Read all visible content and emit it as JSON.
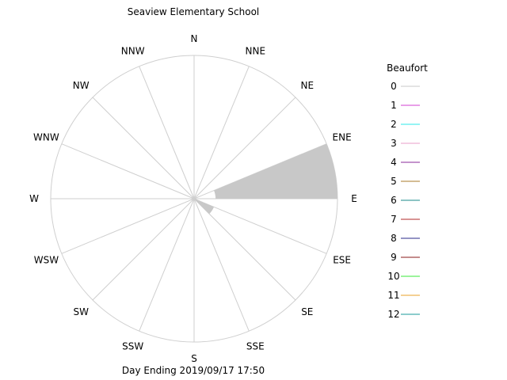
{
  "chart_data": {
    "type": "wind-rose",
    "title": "Seaview Elementary School",
    "footer": "Day Ending 2019/09/17 17:50",
    "directions": [
      "N",
      "NNE",
      "NE",
      "ENE",
      "E",
      "ESE",
      "SE",
      "SSE",
      "S",
      "SSW",
      "SW",
      "WSW",
      "W",
      "WNW",
      "NW",
      "NNW"
    ],
    "grid": true,
    "petal_color": "#c8c8c8",
    "petals": [
      {
        "direction": "ENE",
        "from_deg": 67.5,
        "to_deg": 90,
        "segments": [
          {
            "from": 0.15,
            "to": 1.0
          }
        ]
      },
      {
        "direction": "ESE",
        "from_deg": 112.5,
        "to_deg": 135,
        "segments": [
          {
            "from": 0.0,
            "to": 0.15
          }
        ]
      }
    ],
    "legend": {
      "title": "Beaufort",
      "placement": "right",
      "items": [
        {
          "label": "0",
          "color": "#c8c8c8"
        },
        {
          "label": "1",
          "color": "#d23fd2"
        },
        {
          "label": "2",
          "color": "#2ee8e8"
        },
        {
          "label": "3",
          "color": "#e89cc8"
        },
        {
          "label": "4",
          "color": "#8a2a9a"
        },
        {
          "label": "5",
          "color": "#a8782a"
        },
        {
          "label": "6",
          "color": "#1a8a8a"
        },
        {
          "label": "7",
          "color": "#b02a2a"
        },
        {
          "label": "8",
          "color": "#2a2a8a"
        },
        {
          "label": "9",
          "color": "#8a1a1a"
        },
        {
          "label": "10",
          "color": "#3ae83a"
        },
        {
          "label": "11",
          "color": "#e8a02a"
        },
        {
          "label": "12",
          "color": "#1a9a9a"
        }
      ]
    }
  }
}
